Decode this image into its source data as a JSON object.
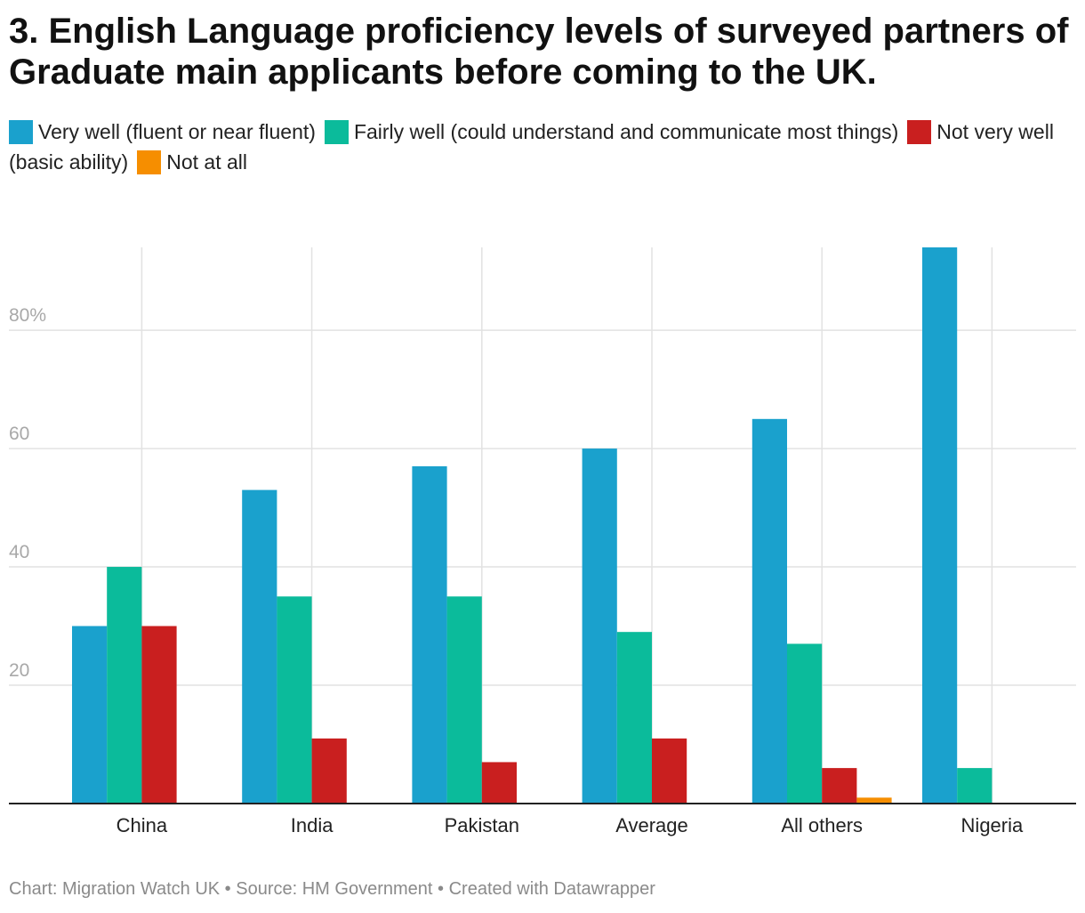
{
  "title": "3. English Language proficiency levels of surveyed partners of Graduate main applicants before coming to the UK.",
  "footer": {
    "chart_label": "Chart: Migration Watch UK",
    "sep1": "•",
    "source": "Source: HM Government",
    "sep2": "•",
    "created": "Created with Datawrapper"
  },
  "chart_data": {
    "type": "bar",
    "title": "3. English Language proficiency levels of surveyed partners of Graduate main applicants before coming to the UK.",
    "xlabel": "",
    "ylabel": "",
    "categories": [
      "China",
      "India",
      "Pakistan",
      "Average",
      "All others",
      "Nigeria"
    ],
    "series": [
      {
        "name": "Very well (fluent or near fluent)",
        "color": "#1aa1cd",
        "values": [
          30,
          53,
          57,
          60,
          65,
          94
        ]
      },
      {
        "name": "Fairly well (could understand and communicate most things)",
        "color": "#0bbb9b",
        "values": [
          40,
          35,
          35,
          29,
          27,
          6
        ]
      },
      {
        "name": "Not very well (basic ability)",
        "color": "#c91f1f",
        "values": [
          30,
          11,
          7,
          11,
          6,
          0
        ]
      },
      {
        "name": "Not at all",
        "color": "#f68e00",
        "values": [
          0,
          0,
          0,
          0,
          1,
          0
        ]
      }
    ],
    "yticks": [
      {
        "value": 20,
        "label": "20"
      },
      {
        "value": 40,
        "label": "40"
      },
      {
        "value": 60,
        "label": "60"
      },
      {
        "value": 80,
        "label": "80%"
      }
    ],
    "ylim": [
      0,
      94
    ],
    "grid": true,
    "legend_position": "top"
  }
}
